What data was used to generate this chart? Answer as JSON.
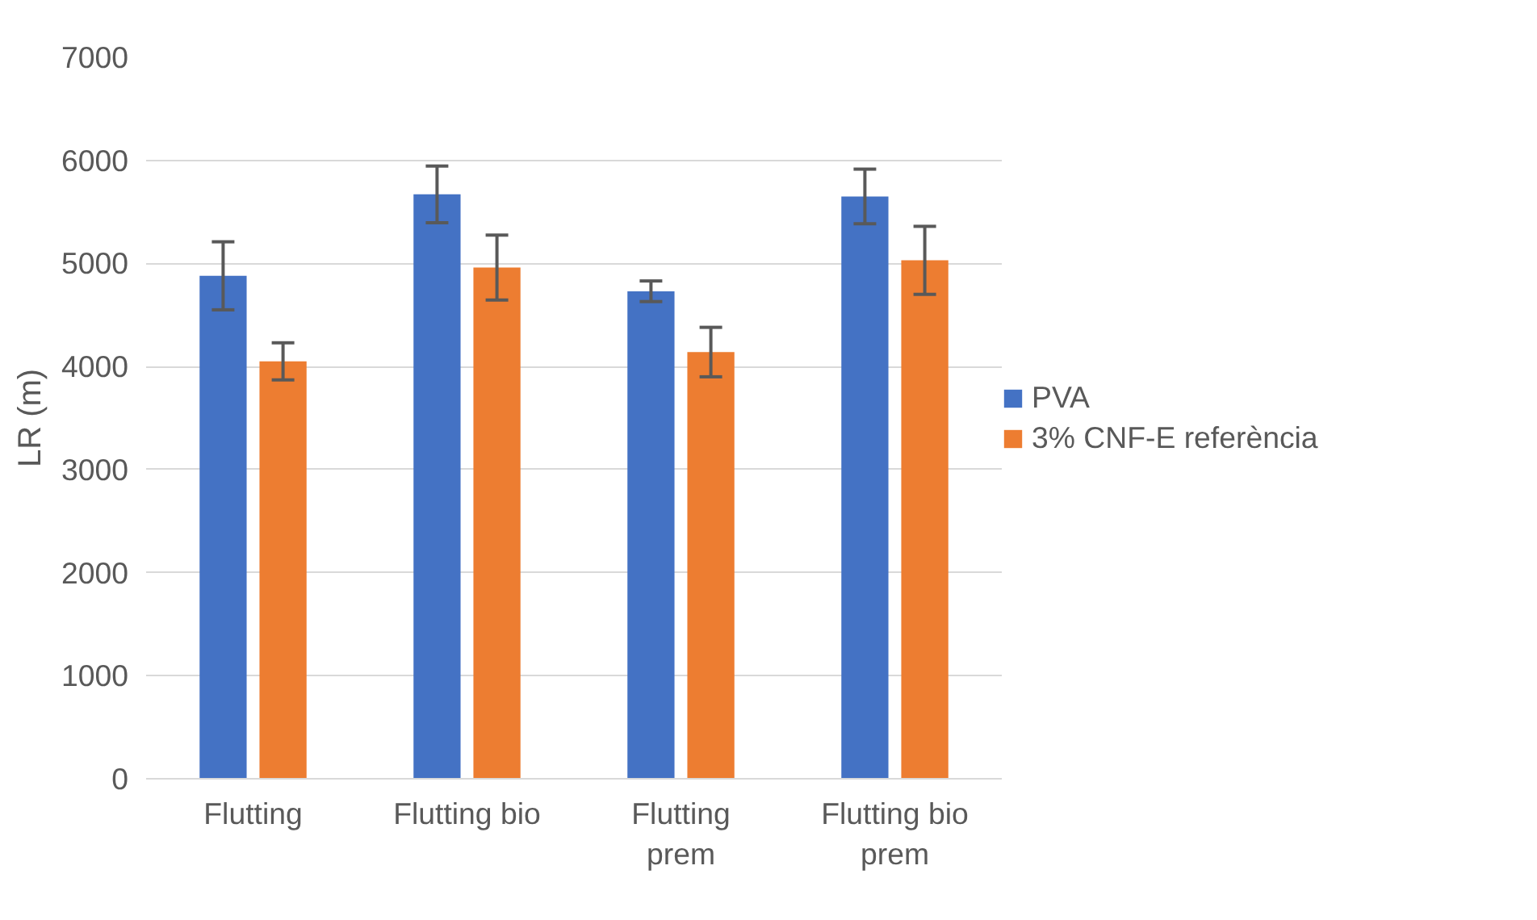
{
  "chart_data": {
    "type": "bar",
    "ylabel": "LR (m)",
    "categories": [
      "Flutting",
      "Flutting bio",
      "Flutting prem",
      "Flutting bio prem"
    ],
    "series": [
      {
        "name": "PVA",
        "color": "#4472c4",
        "values": [
          4880,
          5670,
          4730,
          5650
        ],
        "errors": [
          330,
          275,
          100,
          265
        ]
      },
      {
        "name": "3% CNF-E referència",
        "color": "#ed7d31",
        "values": [
          4050,
          4960,
          4140,
          5030
        ],
        "errors": [
          180,
          315,
          240,
          330
        ]
      }
    ],
    "ylim": [
      0,
      7000
    ],
    "yticks": [
      0,
      1000,
      2000,
      3000,
      4000,
      5000,
      6000,
      7000
    ],
    "grid": "y",
    "legend": "right"
  }
}
